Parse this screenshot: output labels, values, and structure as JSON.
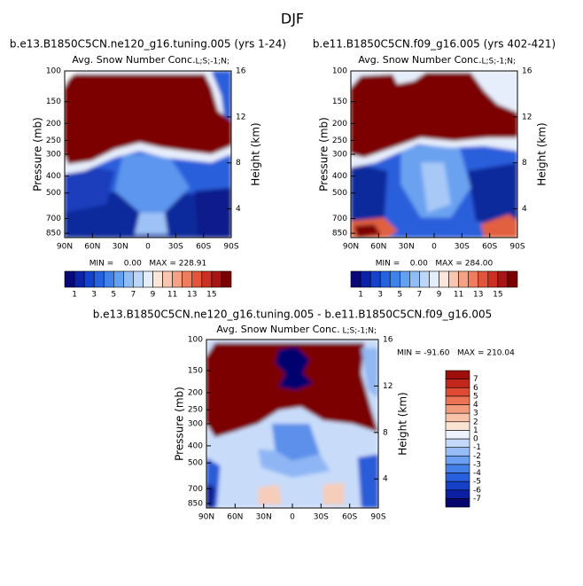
{
  "title": "DJF",
  "chart_data": [
    {
      "type": "contour",
      "title": "b.e13.B1850C5CN.ne120_g16.tuning.005 (yrs 1-24)",
      "subtitle": "Avg. Snow Number Conc.",
      "annotation": "L;S;-1;N;",
      "ylabel": "Pressure (mb)",
      "y2label": "Height (km)",
      "xlim": [
        90,
        -90
      ],
      "xticks": [
        {
          "value": 90,
          "label": "90N"
        },
        {
          "value": 60,
          "label": "60N"
        },
        {
          "value": 30,
          "label": "30N"
        },
        0,
        {
          "value": -30,
          "label": "30S"
        },
        {
          "value": -60,
          "label": "60S"
        },
        {
          "value": -90,
          "label": "90S"
        }
      ],
      "ylim": [
        100,
        900
      ],
      "ylog": true,
      "yticks": [
        100,
        150,
        200,
        250,
        300,
        400,
        500,
        700,
        850
      ],
      "y2lim": [
        1.5,
        16
      ],
      "y2ticks": [
        4,
        8,
        12,
        16
      ],
      "stats": "MIN =    0.00   MAX = 228.91",
      "colorbar": {
        "orientation": "horizontal",
        "levels": [
          1,
          2,
          3,
          4,
          5,
          6,
          7,
          8,
          9,
          10,
          11,
          12,
          13,
          14,
          15,
          16
        ],
        "ticks": [
          1,
          3,
          5,
          7,
          9,
          11,
          13,
          15
        ],
        "colors": [
          "#08087a",
          "#0c22a8",
          "#1442cc",
          "#2562e0",
          "#3f82ec",
          "#62a0f2",
          "#90bdf6",
          "#bcd6f9",
          "#e4eefb",
          "#fbe6da",
          "#f8c6ae",
          "#f4a283",
          "#ee7c5d",
          "#e2553c",
          "#cc3022",
          "#a91414",
          "#7d0000"
        ]
      }
    },
    {
      "type": "contour",
      "title": "b.e11.B1850C5CN.f09_g16.005 (yrs 402-421)",
      "subtitle": "Avg. Snow Number Conc.",
      "annotation": "L;S;-1;N;",
      "ylabel": "Pressure (mb)",
      "y2label": "Height (km)",
      "xlim": [
        90,
        -90
      ],
      "xticks": [
        {
          "value": 90,
          "label": "90N"
        },
        {
          "value": 60,
          "label": "60N"
        },
        {
          "value": 30,
          "label": "30N"
        },
        0,
        {
          "value": -30,
          "label": "30S"
        },
        {
          "value": -60,
          "label": "60S"
        },
        {
          "value": -90,
          "label": "90S"
        }
      ],
      "ylim": [
        100,
        900
      ],
      "ylog": true,
      "yticks": [
        100,
        150,
        200,
        250,
        300,
        400,
        500,
        700,
        850
      ],
      "y2lim": [
        1.5,
        16
      ],
      "y2ticks": [
        4,
        8,
        12,
        16
      ],
      "stats": "MIN =    0.00   MAX = 284.00",
      "colorbar": {
        "orientation": "horizontal",
        "levels": [
          1,
          2,
          3,
          4,
          5,
          6,
          7,
          8,
          9,
          10,
          11,
          12,
          13,
          14,
          15,
          16
        ],
        "ticks": [
          1,
          3,
          5,
          7,
          9,
          11,
          13,
          15
        ],
        "colors": [
          "#08087a",
          "#0c22a8",
          "#1442cc",
          "#2562e0",
          "#3f82ec",
          "#62a0f2",
          "#90bdf6",
          "#bcd6f9",
          "#e4eefb",
          "#fbe6da",
          "#f8c6ae",
          "#f4a283",
          "#ee7c5d",
          "#e2553c",
          "#cc3022",
          "#a91414",
          "#7d0000"
        ]
      }
    },
    {
      "type": "contour",
      "title": "b.e13.B1850C5CN.ne120_g16.tuning.005 - b.e11.B1850C5CN.f09_g16.005",
      "subtitle": "Avg. Snow Number Conc.",
      "annotation": "L;S;-1;N;",
      "ylabel": "Pressure (mb)",
      "y2label": "Height (km)",
      "xlim": [
        90,
        -90
      ],
      "xticks": [
        {
          "value": 90,
          "label": "90N"
        },
        {
          "value": 60,
          "label": "60N"
        },
        {
          "value": 30,
          "label": "30N"
        },
        0,
        {
          "value": -30,
          "label": "30S"
        },
        {
          "value": -60,
          "label": "60S"
        },
        {
          "value": -90,
          "label": "90S"
        }
      ],
      "ylim": [
        100,
        900
      ],
      "ylog": true,
      "yticks": [
        100,
        150,
        200,
        250,
        300,
        400,
        500,
        700,
        850
      ],
      "y2lim": [
        1.5,
        16
      ],
      "y2ticks": [
        4,
        8,
        12,
        16
      ],
      "stats": "MIN = -91.60   MAX = 210.04",
      "colorbar": {
        "orientation": "vertical",
        "levels": [
          -7,
          -6,
          -5,
          -4,
          -3,
          -2,
          -1,
          0,
          1,
          2,
          3,
          4,
          5,
          6,
          7
        ],
        "ticks": [
          -7,
          -6,
          -5,
          -4,
          -3,
          -2,
          -1,
          0,
          1,
          2,
          3,
          4,
          5,
          6,
          7
        ],
        "colors": [
          "#06066e",
          "#0c20a4",
          "#1640c8",
          "#2660de",
          "#4480ea",
          "#6a9ff2",
          "#97bdf6",
          "#c4d9fa",
          "#eef3fb",
          "#fbe3d4",
          "#f8c2a8",
          "#f39c7c",
          "#ec7454",
          "#de4a32",
          "#c3261a",
          "#9e0f0c"
        ]
      }
    }
  ]
}
